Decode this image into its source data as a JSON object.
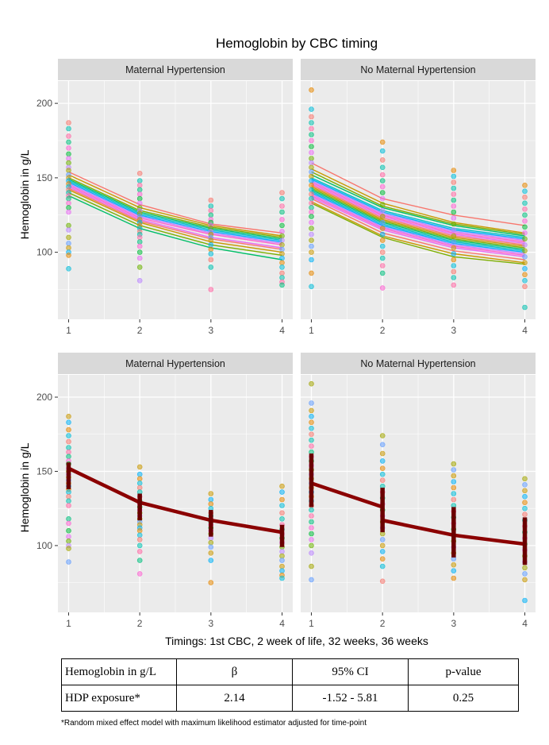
{
  "chart_data": {
    "type": "scatter",
    "title": "Hemoglobin by CBC timing",
    "xlabel": "Timings: 1st CBC, 2 week of life, 32 weeks, 36 weeks",
    "ylabel": "Hemoglobin in g/L",
    "x_ticks": [
      "1",
      "2",
      "3",
      "4"
    ],
    "y_ticks": [
      "100",
      "150",
      "200"
    ],
    "xlim": [
      0.85,
      4.15
    ],
    "ylim": [
      55,
      215
    ],
    "grid": true,
    "panels": [
      {
        "row": 1,
        "strip": "Maternal Hypertension",
        "kind": "individual-trajectories",
        "points": {
          "1": [
            187,
            183,
            178,
            174,
            170,
            166,
            163,
            160,
            157,
            155,
            152,
            150,
            148,
            146,
            144,
            142,
            140,
            138,
            136,
            133,
            130,
            127,
            118,
            115,
            110,
            106,
            103,
            100,
            98,
            89
          ],
          "2": [
            153,
            148,
            145,
            142,
            139,
            136,
            133,
            130,
            128,
            126,
            124,
            122,
            120,
            118,
            116,
            114,
            112,
            110,
            107,
            104,
            100,
            96,
            90,
            81
          ],
          "3": [
            135,
            131,
            128,
            125,
            122,
            120,
            118,
            116,
            114,
            112,
            110,
            108,
            105,
            102,
            99,
            95,
            90,
            75
          ],
          "4": [
            140,
            136,
            131,
            127,
            122,
            118,
            114,
            111,
            108,
            105,
            102,
            99,
            96,
            93,
            90,
            86,
            83,
            80,
            78
          ]
        },
        "trajectories": [
          [
            154,
            132,
            119,
            113
          ],
          [
            152,
            130,
            118,
            111
          ],
          [
            150,
            128,
            117,
            110
          ],
          [
            149,
            127,
            116,
            109
          ],
          [
            148,
            126,
            115,
            108
          ],
          [
            147,
            125,
            114,
            107
          ],
          [
            146,
            124,
            113,
            106
          ],
          [
            145,
            123,
            112,
            105
          ],
          [
            144,
            122,
            110,
            103
          ],
          [
            143,
            121,
            109,
            102
          ],
          [
            142,
            120,
            107,
            100
          ],
          [
            140,
            118,
            105,
            98
          ],
          [
            138,
            116,
            103,
            95
          ]
        ]
      },
      {
        "row": 1,
        "strip": "No Maternal Hypertension",
        "kind": "individual-trajectories",
        "points": {
          "1": [
            209,
            196,
            191,
            187,
            183,
            179,
            175,
            171,
            167,
            163,
            160,
            157,
            154,
            151,
            148,
            145,
            142,
            139,
            136,
            133,
            130,
            127,
            124,
            120,
            116,
            112,
            108,
            104,
            100,
            95,
            86,
            77
          ],
          "2": [
            174,
            168,
            162,
            157,
            152,
            148,
            144,
            140,
            136,
            132,
            128,
            124,
            120,
            116,
            112,
            108,
            104,
            100,
            96,
            91,
            86,
            76
          ],
          "3": [
            155,
            151,
            147,
            143,
            139,
            135,
            131,
            127,
            123,
            119,
            115,
            111,
            107,
            103,
            99,
            95,
            91,
            87,
            83,
            78
          ],
          "4": [
            145,
            141,
            137,
            133,
            129,
            125,
            121,
            117,
            113,
            109,
            105,
            101,
            97,
            93,
            89,
            85,
            81,
            77,
            63
          ]
        },
        "trajectories": [
          [
            160,
            136,
            125,
            118
          ],
          [
            156,
            133,
            120,
            113
          ],
          [
            154,
            131,
            119,
            112
          ],
          [
            152,
            130,
            118,
            111
          ],
          [
            150,
            128,
            116,
            110
          ],
          [
            149,
            127,
            115,
            109
          ],
          [
            148,
            126,
            114,
            108
          ],
          [
            147,
            125,
            113,
            107
          ],
          [
            146,
            124,
            112,
            106
          ],
          [
            145,
            123,
            111,
            105
          ],
          [
            144,
            122,
            110,
            104
          ],
          [
            143,
            121,
            109,
            103
          ],
          [
            142,
            120,
            108,
            102
          ],
          [
            141,
            119,
            107,
            101
          ],
          [
            140,
            118,
            106,
            100
          ],
          [
            139,
            117,
            105,
            99
          ],
          [
            138,
            116,
            104,
            98
          ],
          [
            137,
            115,
            103,
            97
          ],
          [
            136,
            113,
            101,
            95
          ],
          [
            134,
            111,
            99,
            93
          ],
          [
            133,
            110,
            97,
            92
          ]
        ]
      },
      {
        "row": 2,
        "strip": "Maternal Hypertension",
        "kind": "mean-with-errorbars",
        "points": {
          "1": [
            187,
            183,
            178,
            174,
            170,
            166,
            163,
            160,
            157,
            155,
            152,
            150,
            148,
            146,
            144,
            142,
            140,
            138,
            136,
            133,
            130,
            127,
            118,
            115,
            110,
            106,
            103,
            100,
            98,
            89
          ],
          "2": [
            153,
            148,
            145,
            142,
            139,
            136,
            133,
            130,
            128,
            126,
            124,
            122,
            120,
            118,
            116,
            114,
            112,
            110,
            107,
            104,
            100,
            96,
            90,
            81
          ],
          "3": [
            135,
            131,
            128,
            125,
            122,
            120,
            118,
            116,
            114,
            112,
            110,
            108,
            105,
            102,
            99,
            95,
            90,
            75
          ],
          "4": [
            140,
            136,
            131,
            127,
            122,
            118,
            114,
            111,
            108,
            105,
            102,
            99,
            96,
            93,
            90,
            86,
            83,
            80,
            78
          ]
        },
        "mean": [
          152,
          129,
          117,
          109
        ],
        "err_low": [
          138,
          117,
          106,
          99
        ],
        "err_high": [
          156,
          135,
          124,
          114
        ]
      },
      {
        "row": 2,
        "strip": "No Maternal Hypertension",
        "kind": "mean-with-errorbars",
        "points": {
          "1": [
            209,
            196,
            191,
            187,
            183,
            179,
            175,
            171,
            167,
            163,
            160,
            157,
            154,
            151,
            148,
            145,
            142,
            139,
            136,
            133,
            130,
            127,
            124,
            120,
            116,
            112,
            108,
            104,
            100,
            95,
            86,
            77
          ],
          "2": [
            174,
            168,
            162,
            157,
            152,
            148,
            144,
            140,
            136,
            132,
            128,
            124,
            120,
            116,
            112,
            108,
            104,
            100,
            96,
            91,
            86,
            76
          ],
          "3": [
            155,
            151,
            147,
            143,
            139,
            135,
            131,
            127,
            123,
            119,
            115,
            111,
            107,
            103,
            99,
            95,
            91,
            87,
            83,
            78
          ],
          "4": [
            145,
            141,
            137,
            133,
            129,
            125,
            121,
            117,
            113,
            109,
            105,
            101,
            97,
            93,
            89,
            85,
            81,
            77,
            63
          ]
        },
        "mean_segments": [
          [
            142,
            126
          ],
          [
            117,
            107
          ],
          [
            107,
            101
          ]
        ],
        "err_low": [
          126,
          109,
          92,
          87
        ],
        "err_high": [
          162,
          139,
          126,
          119
        ]
      }
    ]
  },
  "colors": {
    "panel_bg": "#ebebeb",
    "strip_bg": "#d9d9d9",
    "grid": "#ffffff",
    "mean_line": "#8b0000",
    "errorbar": "#6b0000",
    "palette": [
      "#f8766d",
      "#e58700",
      "#c99800",
      "#a3a500",
      "#6bb100",
      "#00ba38",
      "#00bf7d",
      "#00c0af",
      "#00bcd8",
      "#00b0f6",
      "#619cff",
      "#b983ff",
      "#e76bf3",
      "#fd61d1",
      "#ff67a4"
    ],
    "trajectory_palette": [
      "#f8766d",
      "#c99800",
      "#7cae00",
      "#00be67",
      "#00bfc4",
      "#00a9ff",
      "#c77cff",
      "#ff61cc",
      "#e76bf3"
    ]
  },
  "table": {
    "header": [
      "Hemoglobin in g/L",
      "β",
      "95% CI",
      "p-value"
    ],
    "row": [
      "HDP exposure*",
      "2.14",
      "-1.52 - 5.81",
      "0.25"
    ]
  },
  "footnote": "*Random mixed effect model with maximum likelihood estimator adjusted for time-point"
}
